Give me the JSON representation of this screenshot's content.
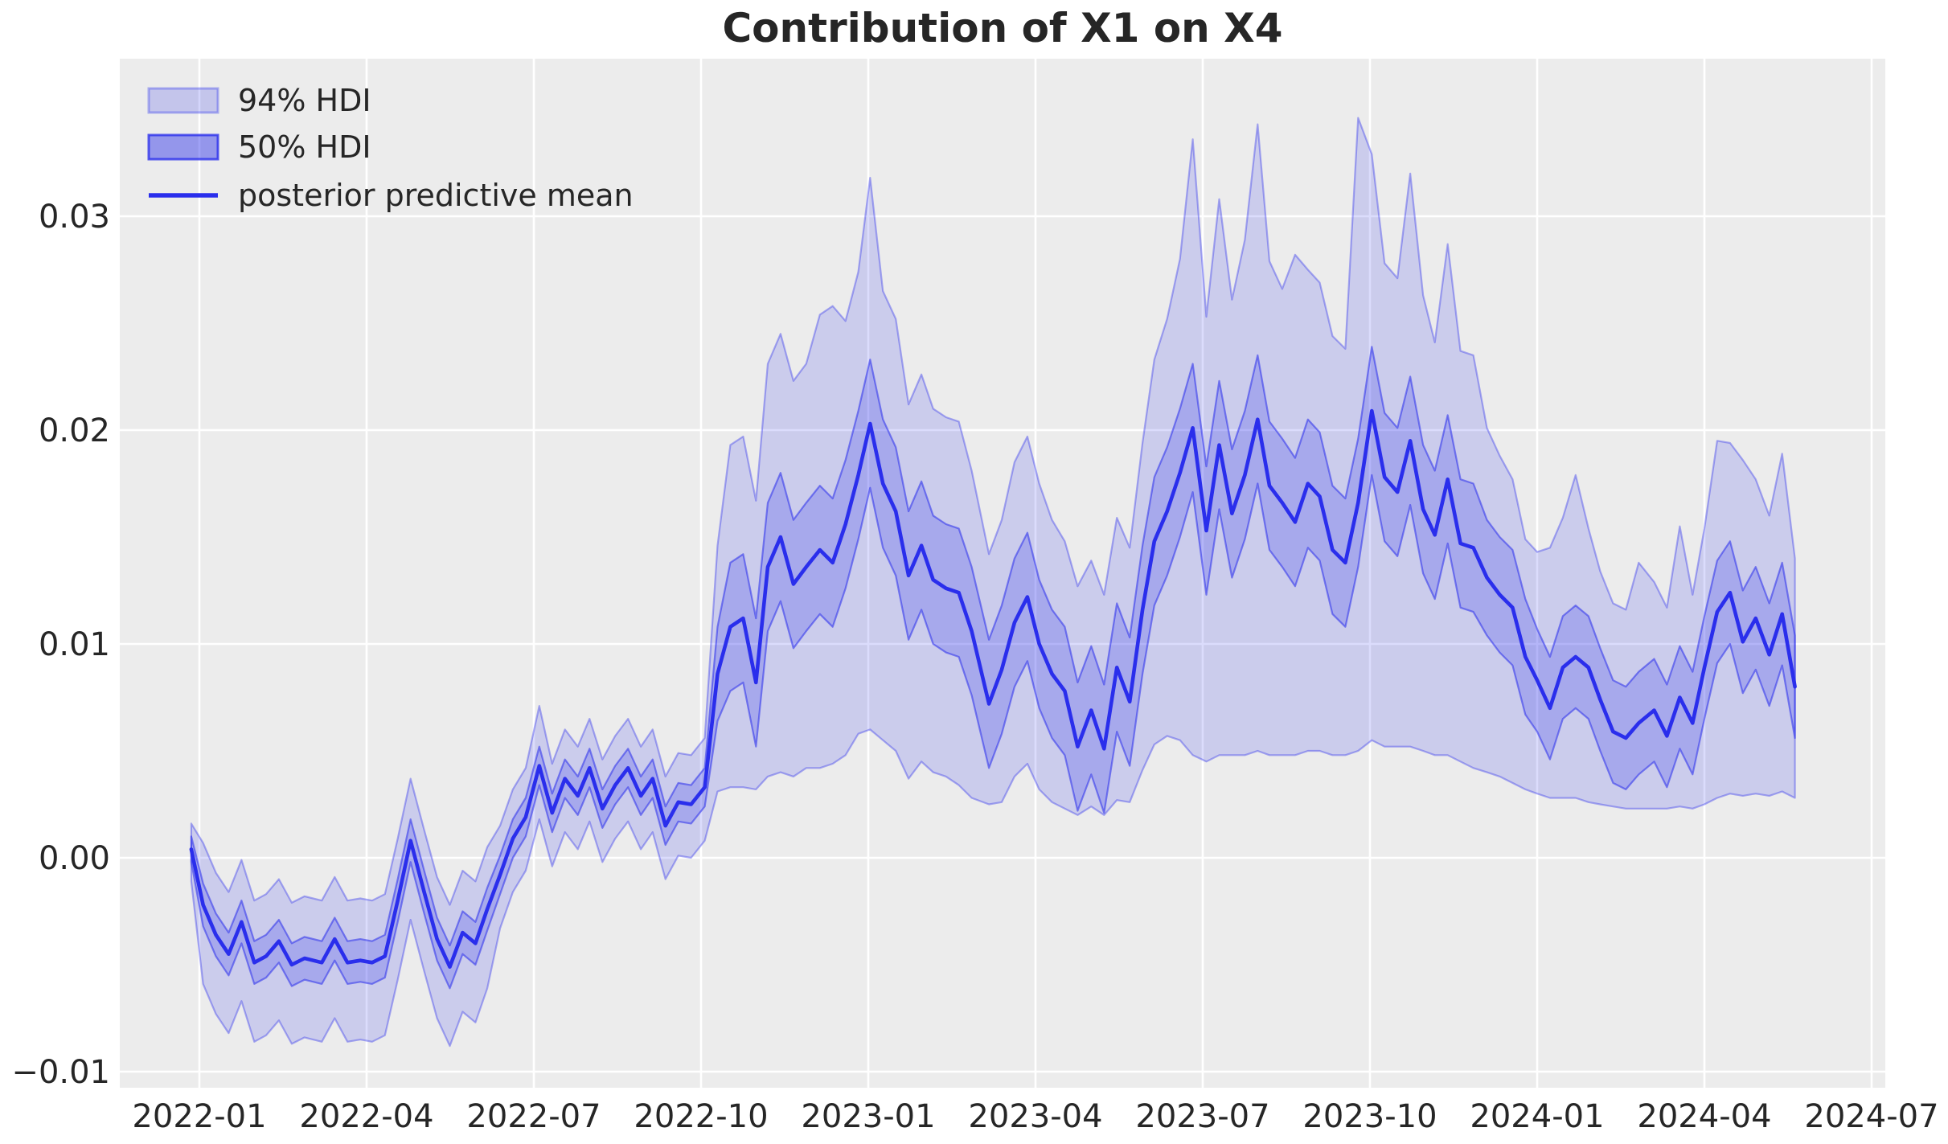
{
  "title": "Contribution of X1 on X4",
  "legend": {
    "items": [
      {
        "label": "94% HDI",
        "swatch": "band-light"
      },
      {
        "label": "50% HDI",
        "swatch": "band-dark"
      },
      {
        "label": "posterior predictive mean",
        "swatch": "line"
      }
    ]
  },
  "axes": {
    "x_tick_labels": [
      "2022-01",
      "2022-04",
      "2022-07",
      "2022-10",
      "2023-01",
      "2023-04",
      "2023-07",
      "2023-10",
      "2024-01",
      "2024-04",
      "2024-07"
    ],
    "y_tick_labels": [
      "−0.01",
      "0.00",
      "0.01",
      "0.02",
      "0.03"
    ],
    "y_tick_values": [
      -0.01,
      0.0,
      0.01,
      0.02,
      0.03
    ]
  },
  "colors": {
    "figure_bg": "#ffffff",
    "plot_bg": "#ececec",
    "grid": "#ffffff",
    "base_blue": "#2a2eec",
    "band94_fill": "rgba(42,46,236,0.17)",
    "band94_edge": "rgba(42,46,236,0.38)",
    "band50_fill": "rgba(42,46,236,0.22)",
    "band50_edge": "rgba(42,46,236,0.55)",
    "legend94_fill": "rgba(42,46,236,0.20)",
    "legend94_edge": "rgba(42,46,236,0.34)",
    "legend50_fill": "rgba(42,46,236,0.45)",
    "legend50_edge": "rgba(42,46,236,0.78)",
    "mean_line": "#2a2eec",
    "text": "#262626"
  },
  "chart_data": {
    "type": "line",
    "title": "Contribution of X1 on X4",
    "xlabel": "",
    "ylabel": "",
    "grid": true,
    "legend_position": "upper left",
    "x_range": [
      "2021-12-27",
      "2024-05-20"
    ],
    "ylim": [
      -0.011,
      0.0373
    ],
    "dates": [
      "2021-12-27",
      "2022-01-03",
      "2022-01-10",
      "2022-01-17",
      "2022-01-24",
      "2022-01-31",
      "2022-02-07",
      "2022-02-14",
      "2022-02-21",
      "2022-02-28",
      "2022-03-07",
      "2022-03-14",
      "2022-03-21",
      "2022-03-28",
      "2022-04-04",
      "2022-04-11",
      "2022-04-18",
      "2022-04-25",
      "2022-05-02",
      "2022-05-09",
      "2022-05-16",
      "2022-05-23",
      "2022-05-30",
      "2022-06-06",
      "2022-06-13",
      "2022-06-20",
      "2022-06-27",
      "2022-07-04",
      "2022-07-11",
      "2022-07-18",
      "2022-07-25",
      "2022-08-01",
      "2022-08-08",
      "2022-08-15",
      "2022-08-22",
      "2022-08-29",
      "2022-09-05",
      "2022-09-12",
      "2022-09-19",
      "2022-09-26",
      "2022-10-03",
      "2022-10-10",
      "2022-10-17",
      "2022-10-24",
      "2022-10-31",
      "2022-11-07",
      "2022-11-14",
      "2022-11-21",
      "2022-11-28",
      "2022-12-05",
      "2022-12-12",
      "2022-12-19",
      "2022-12-26",
      "2023-01-02",
      "2023-01-09",
      "2023-01-16",
      "2023-01-23",
      "2023-01-30",
      "2023-02-06",
      "2023-02-13",
      "2023-02-20",
      "2023-02-27",
      "2023-03-06",
      "2023-03-13",
      "2023-03-20",
      "2023-03-27",
      "2023-04-03",
      "2023-04-10",
      "2023-04-17",
      "2023-04-24",
      "2023-05-01",
      "2023-05-08",
      "2023-05-15",
      "2023-05-22",
      "2023-05-29",
      "2023-06-05",
      "2023-06-12",
      "2023-06-19",
      "2023-06-26",
      "2023-07-03",
      "2023-07-10",
      "2023-07-17",
      "2023-07-24",
      "2023-07-31",
      "2023-08-07",
      "2023-08-14",
      "2023-08-21",
      "2023-08-28",
      "2023-09-04",
      "2023-09-11",
      "2023-09-18",
      "2023-09-25",
      "2023-10-02",
      "2023-10-09",
      "2023-10-16",
      "2023-10-23",
      "2023-10-30",
      "2023-11-06",
      "2023-11-13",
      "2023-11-20",
      "2023-11-27",
      "2023-12-04",
      "2023-12-11",
      "2023-12-18",
      "2023-12-25",
      "2024-01-01",
      "2024-01-08",
      "2024-01-15",
      "2024-01-22",
      "2024-01-29",
      "2024-02-05",
      "2024-02-12",
      "2024-02-19",
      "2024-02-26",
      "2024-03-04",
      "2024-03-11",
      "2024-03-18",
      "2024-03-25",
      "2024-04-01",
      "2024-04-08",
      "2024-04-15",
      "2024-04-22",
      "2024-04-29",
      "2024-05-06",
      "2024-05-13",
      "2024-05-20"
    ],
    "mean": [
      0.0004,
      -0.0022,
      -0.0036,
      -0.0045,
      -0.003,
      -0.0049,
      -0.0046,
      -0.0039,
      -0.005,
      -0.0047,
      -0.0049,
      -0.0038,
      -0.0049,
      -0.0048,
      -0.0049,
      -0.0046,
      -0.002,
      0.0008,
      -0.0016,
      -0.0038,
      -0.0051,
      -0.0035,
      -0.004,
      -0.0024,
      -0.0008,
      0.0009,
      0.0019,
      0.0043,
      0.0021,
      0.0037,
      0.0029,
      0.0042,
      0.0023,
      0.0034,
      0.0042,
      0.0029,
      0.0037,
      0.0015,
      0.0026,
      0.0025,
      0.0033,
      0.0086,
      0.0108,
      0.0112,
      0.0082,
      0.0136,
      0.015,
      0.0128,
      0.0136,
      0.0144,
      0.0138,
      0.0156,
      0.0179,
      0.0203,
      0.0175,
      0.0162,
      0.0132,
      0.0146,
      0.013,
      0.0126,
      0.0124,
      0.0106,
      0.0072,
      0.0088,
      0.011,
      0.0122,
      0.01,
      0.0086,
      0.0078,
      0.0052,
      0.0069,
      0.0051,
      0.0089,
      0.0073,
      0.0116,
      0.0148,
      0.0162,
      0.018,
      0.0201,
      0.0153,
      0.0193,
      0.0161,
      0.0179,
      0.0205,
      0.0174,
      0.0166,
      0.0157,
      0.0175,
      0.0169,
      0.0144,
      0.0138,
      0.0166,
      0.0209,
      0.0178,
      0.0171,
      0.0195,
      0.0163,
      0.0151,
      0.0177,
      0.0147,
      0.0145,
      0.0131,
      0.0123,
      0.0117,
      0.0094,
      0.0083,
      0.007,
      0.0089,
      0.0094,
      0.0089,
      0.0074,
      0.0059,
      0.0056,
      0.0063,
      0.0069,
      0.0057,
      0.0075,
      0.0063,
      0.0089,
      0.0115,
      0.0124,
      0.0101,
      0.0112,
      0.0095,
      0.0114,
      0.008
    ],
    "hdi50_half_width": [
      0.0006,
      0.001,
      0.001,
      0.001,
      0.001,
      0.001,
      0.001,
      0.001,
      0.001,
      0.001,
      0.001,
      0.001,
      0.001,
      0.001,
      0.001,
      0.001,
      0.001,
      0.001,
      0.001,
      0.001,
      0.001,
      0.001,
      0.001,
      0.001,
      0.0009,
      0.0009,
      0.0009,
      0.0009,
      0.0009,
      0.0009,
      0.0009,
      0.0009,
      0.0009,
      0.0009,
      0.0009,
      0.0009,
      0.0009,
      0.0009,
      0.0009,
      0.0009,
      0.0009,
      0.0022,
      0.003,
      0.003,
      0.003,
      0.003,
      0.003,
      0.003,
      0.003,
      0.003,
      0.003,
      0.003,
      0.003,
      0.003,
      0.003,
      0.003,
      0.003,
      0.003,
      0.003,
      0.003,
      0.003,
      0.003,
      0.003,
      0.003,
      0.003,
      0.003,
      0.003,
      0.003,
      0.003,
      0.003,
      0.003,
      0.003,
      0.003,
      0.003,
      0.003,
      0.003,
      0.003,
      0.003,
      0.003,
      0.003,
      0.003,
      0.003,
      0.003,
      0.003,
      0.003,
      0.003,
      0.003,
      0.003,
      0.003,
      0.003,
      0.003,
      0.003,
      0.003,
      0.003,
      0.003,
      0.003,
      0.003,
      0.003,
      0.003,
      0.003,
      0.003,
      0.0027,
      0.0027,
      0.0027,
      0.0027,
      0.0024,
      0.0024,
      0.0024,
      0.0024,
      0.0024,
      0.0024,
      0.0024,
      0.0024,
      0.0024,
      0.0024,
      0.0024,
      0.0024,
      0.0024,
      0.0024,
      0.0024,
      0.0024,
      0.0024,
      0.0024,
      0.0024,
      0.0024,
      0.0024
    ],
    "hdi94_upper_offset": [
      0.0012,
      0.0029,
      0.0029,
      0.0029,
      0.0029,
      0.0029,
      0.0029,
      0.0029,
      0.0029,
      0.0029,
      0.0029,
      0.0029,
      0.0029,
      0.0029,
      0.0029,
      0.0029,
      0.0029,
      0.0029,
      0.0029,
      0.0029,
      0.0029,
      0.0029,
      0.0029,
      0.0029,
      0.0023,
      0.0023,
      0.0023,
      0.0028,
      0.0023,
      0.0023,
      0.0023,
      0.0023,
      0.0023,
      0.0023,
      0.0023,
      0.0023,
      0.0023,
      0.0023,
      0.0023,
      0.0023,
      0.0023,
      0.006,
      0.0085,
      0.0085,
      0.0085,
      0.0095,
      0.0095,
      0.0095,
      0.0095,
      0.011,
      0.012,
      0.0095,
      0.0095,
      0.0115,
      0.009,
      0.009,
      0.008,
      0.008,
      0.008,
      0.008,
      0.008,
      0.0075,
      0.007,
      0.007,
      0.0075,
      0.0075,
      0.0075,
      0.0072,
      0.007,
      0.0075,
      0.007,
      0.0072,
      0.007,
      0.0072,
      0.0078,
      0.0085,
      0.009,
      0.01,
      0.0135,
      0.01,
      0.0115,
      0.01,
      0.011,
      0.0138,
      0.0105,
      0.01,
      0.0125,
      0.01,
      0.01,
      0.01,
      0.01,
      0.018,
      0.012,
      0.01,
      0.01,
      0.0125,
      0.01,
      0.009,
      0.011,
      0.009,
      0.009,
      0.007,
      0.0065,
      0.006,
      0.0055,
      0.006,
      0.0075,
      0.007,
      0.0085,
      0.0065,
      0.006,
      0.006,
      0.006,
      0.0075,
      0.006,
      0.006,
      0.008,
      0.006,
      0.0065,
      0.008,
      0.007,
      0.0085,
      0.0065,
      0.0065,
      0.0075,
      0.006
    ],
    "hdi94_lower_offset": [
      0.0015,
      0.0037,
      0.0037,
      0.0037,
      0.0037,
      0.0037,
      0.0037,
      0.0037,
      0.0037,
      0.0037,
      0.0037,
      0.0037,
      0.0037,
      0.0037,
      0.0037,
      0.0037,
      0.0037,
      0.0037,
      0.0037,
      0.0037,
      0.0037,
      0.0037,
      0.0037,
      0.0037,
      0.0025,
      0.0025,
      0.0025,
      0.0025,
      0.0025,
      0.0025,
      0.0025,
      0.0025,
      0.0025,
      0.0025,
      0.0025,
      0.0025,
      0.0025,
      0.0025,
      0.0025,
      0.0025,
      0.0025,
      0.0055,
      0.0075,
      0.0079,
      0.005,
      0.0098,
      0.011,
      0.009,
      0.0094,
      0.0102,
      0.0094,
      0.0108,
      0.0121,
      0.0143,
      0.012,
      0.0112,
      0.0095,
      0.0101,
      0.009,
      0.0088,
      0.009,
      0.0078,
      0.0047,
      0.0062,
      0.0072,
      0.0078,
      0.0068,
      0.006,
      0.0055,
      0.0032,
      0.0045,
      0.0031,
      0.0062,
      0.0047,
      0.0075,
      0.0095,
      0.0105,
      0.0125,
      0.0153,
      0.0108,
      0.0145,
      0.0113,
      0.0131,
      0.0155,
      0.0126,
      0.0118,
      0.0109,
      0.0125,
      0.0119,
      0.0096,
      0.009,
      0.0116,
      0.0154,
      0.0126,
      0.0119,
      0.0143,
      0.0113,
      0.0103,
      0.0129,
      0.0102,
      0.0103,
      0.0091,
      0.0085,
      0.0082,
      0.0062,
      0.0053,
      0.0042,
      0.0061,
      0.0066,
      0.0063,
      0.0049,
      0.0035,
      0.0033,
      0.004,
      0.0046,
      0.0034,
      0.0051,
      0.004,
      0.0064,
      0.0087,
      0.0094,
      0.0072,
      0.0082,
      0.0066,
      0.0083,
      0.0052
    ]
  }
}
